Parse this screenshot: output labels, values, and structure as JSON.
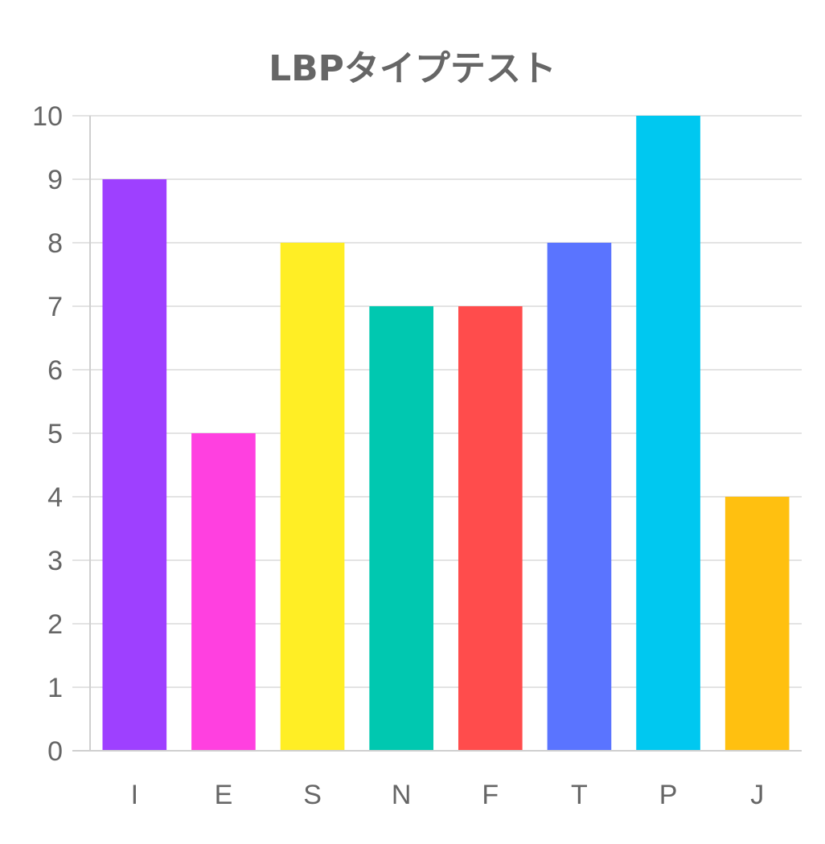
{
  "chart_data": {
    "type": "bar",
    "title": "LBPタイプテスト",
    "xlabel": "",
    "ylabel": "",
    "categories": [
      "I",
      "E",
      "S",
      "N",
      "F",
      "T",
      "P",
      "J"
    ],
    "values": [
      9,
      5,
      8,
      7,
      7,
      8,
      10,
      4
    ],
    "colors": [
      "#9e40ff",
      "#ff40e0",
      "#ffee25",
      "#00c8b0",
      "#ff4c4c",
      "#5a74ff",
      "#00c8f0",
      "#ffc010"
    ],
    "ylim": [
      0,
      10
    ],
    "yticks": [
      "0",
      "1",
      "2",
      "3",
      "4",
      "5",
      "6",
      "7",
      "8",
      "9",
      "10"
    ],
    "grid": true,
    "legend": "none"
  }
}
